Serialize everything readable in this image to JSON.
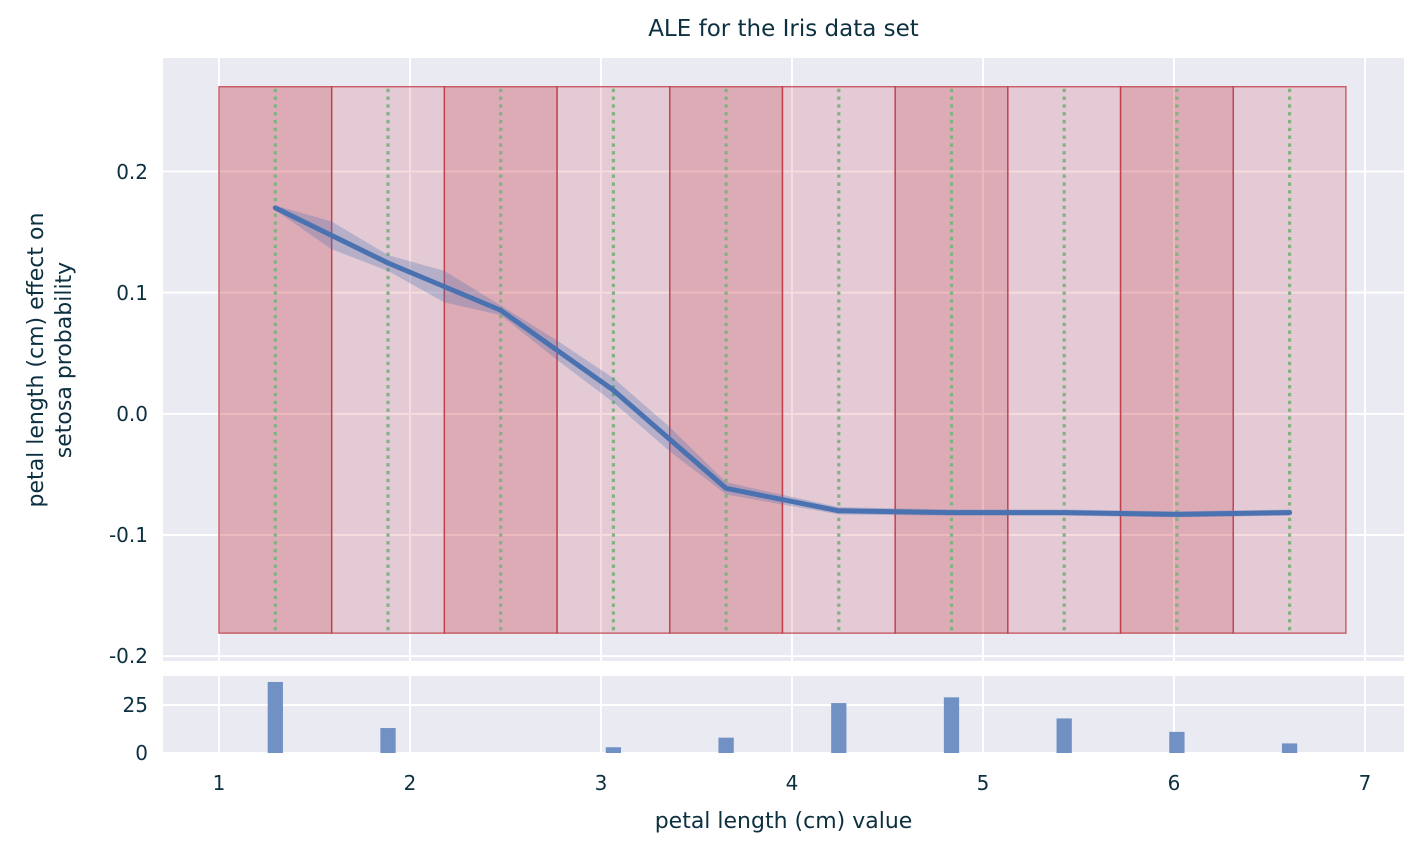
{
  "title": "ALE for the Iris data set",
  "chart_data": [
    {
      "type": "line",
      "title": "ALE for the Iris data set",
      "xlabel": "petal length (cm) value",
      "ylabel": "petal length (cm) effect on setosa probability",
      "ylabel_lines": [
        "petal length (cm) effect on",
        "setosa probability"
      ],
      "x": [
        1.295,
        1.885,
        2.475,
        3.065,
        3.655,
        4.245,
        4.835,
        5.425,
        6.015,
        6.605
      ],
      "y": [
        0.17,
        0.1245,
        0.0855,
        0.0195,
        -0.0615,
        -0.08,
        -0.0815,
        -0.0815,
        -0.083,
        -0.0815
      ],
      "ci_x": [
        1.295,
        1.59,
        1.885,
        2.18,
        2.475,
        2.77,
        3.065,
        3.36,
        3.655,
        3.95,
        4.245,
        4.835,
        5.425,
        6.015,
        6.605
      ],
      "ci_upper": [
        0.172,
        0.1588,
        0.131,
        0.118,
        0.0895,
        0.0605,
        0.0295,
        -0.011,
        -0.0565,
        -0.0668,
        -0.077,
        -0.079,
        -0.079,
        -0.0805,
        -0.079
      ],
      "ci_lower": [
        0.168,
        0.1358,
        0.118,
        0.092,
        0.0815,
        0.0445,
        0.0095,
        -0.031,
        -0.0665,
        -0.0748,
        -0.083,
        -0.084,
        -0.084,
        -0.0855,
        -0.084
      ],
      "band_edges": [
        1.0,
        1.59,
        2.18,
        2.77,
        3.36,
        3.95,
        4.54,
        5.13,
        5.72,
        6.31,
        6.9
      ],
      "bin_centers": [
        1.295,
        1.885,
        2.475,
        3.065,
        3.655,
        4.245,
        4.835,
        5.425,
        6.015,
        6.605
      ],
      "band_top": 0.27,
      "band_bottom": -0.181,
      "xlim": [
        0.707,
        7.204
      ],
      "ylim": [
        -0.204,
        0.2937
      ],
      "xticks": [
        1,
        2,
        3,
        4,
        5,
        6,
        7
      ],
      "xtick_labels": [
        "1",
        "2",
        "3",
        "4",
        "5",
        "6",
        "7"
      ],
      "yticks": [
        0.2,
        0.1,
        0.0,
        -0.1,
        -0.2
      ],
      "ytick_labels": [
        "0.2",
        "0.1",
        "0.0",
        "-0.1",
        "-0.2"
      ],
      "grid": true,
      "legend": false,
      "colors": {
        "line": "#4a72b0",
        "ci_fill": "rgba(76,114,176,0.30)",
        "band_dark": "rgba(199,60,75,0.36)",
        "band_light": "rgba(199,60,75,0.18)",
        "band_edge": "rgba(191,60,70,0.80)",
        "bin_center_line": "#82b282",
        "axes_bg": "#eaeaf2",
        "gridline": "#ffffff",
        "text": "#0d3041"
      }
    },
    {
      "type": "bar",
      "categories": [
        1.295,
        1.885,
        2.475,
        3.065,
        3.655,
        4.245,
        4.835,
        5.425,
        6.015,
        6.605
      ],
      "values": [
        37,
        13,
        0,
        3,
        8,
        26,
        29,
        18,
        11,
        5
      ],
      "title": "",
      "xlabel": "petal length (cm) value",
      "ylabel": "",
      "xlim": [
        0.707,
        7.204
      ],
      "ylim": [
        0,
        40.1
      ],
      "yticks": [
        25,
        0
      ],
      "ytick_labels": [
        "25",
        "0"
      ],
      "xticks": [
        1,
        2,
        3,
        4,
        5,
        6,
        7
      ],
      "bar_width_data": 0.08,
      "bar_color": "#7191c4",
      "grid": true
    }
  ]
}
